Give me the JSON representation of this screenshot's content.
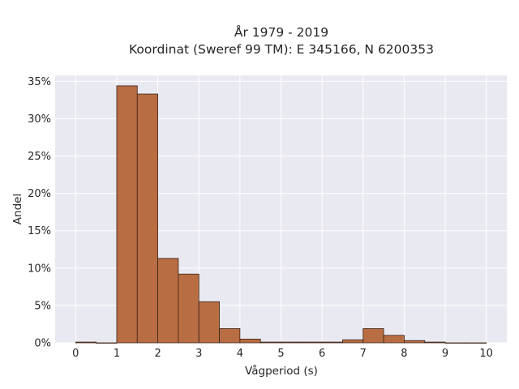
{
  "chart_data": {
    "type": "bar",
    "title_lines": [
      "År 1979 - 2019",
      "Koordinat (Sweref 99 TM): E 345166, N 6200353"
    ],
    "xlabel": "Vågperiod (s)",
    "ylabel": "Andel",
    "xlim": [
      -0.5,
      10.5
    ],
    "ylim": [
      0,
      35.8
    ],
    "x_ticks": [
      "0",
      "1",
      "2",
      "3",
      "4",
      "5",
      "6",
      "7",
      "8",
      "9",
      "10"
    ],
    "y_ticks": [
      "0%",
      "5%",
      "10%",
      "15%",
      "20%",
      "25%",
      "30%",
      "35%"
    ],
    "bin_width": 0.5,
    "bins": [
      {
        "start": 0.0,
        "value": 0.1
      },
      {
        "start": 0.5,
        "value": 0.0
      },
      {
        "start": 1.0,
        "value": 34.4
      },
      {
        "start": 1.5,
        "value": 33.3
      },
      {
        "start": 2.0,
        "value": 11.3
      },
      {
        "start": 2.5,
        "value": 9.2
      },
      {
        "start": 3.0,
        "value": 5.5
      },
      {
        "start": 3.5,
        "value": 1.9
      },
      {
        "start": 4.0,
        "value": 0.5
      },
      {
        "start": 4.5,
        "value": 0.1
      },
      {
        "start": 5.0,
        "value": 0.1
      },
      {
        "start": 5.5,
        "value": 0.1
      },
      {
        "start": 6.0,
        "value": 0.1
      },
      {
        "start": 6.5,
        "value": 0.4
      },
      {
        "start": 7.0,
        "value": 1.9
      },
      {
        "start": 7.5,
        "value": 1.0
      },
      {
        "start": 8.0,
        "value": 0.3
      },
      {
        "start": 8.5,
        "value": 0.1
      },
      {
        "start": 9.0,
        "value": 0.0
      },
      {
        "start": 9.5,
        "value": 0.0
      }
    ],
    "grid": true,
    "bar_color": "#b96d43",
    "bar_edge_color": "#3a2418",
    "plot_background": "#e9e9f1",
    "grid_color": "#ffffff"
  }
}
